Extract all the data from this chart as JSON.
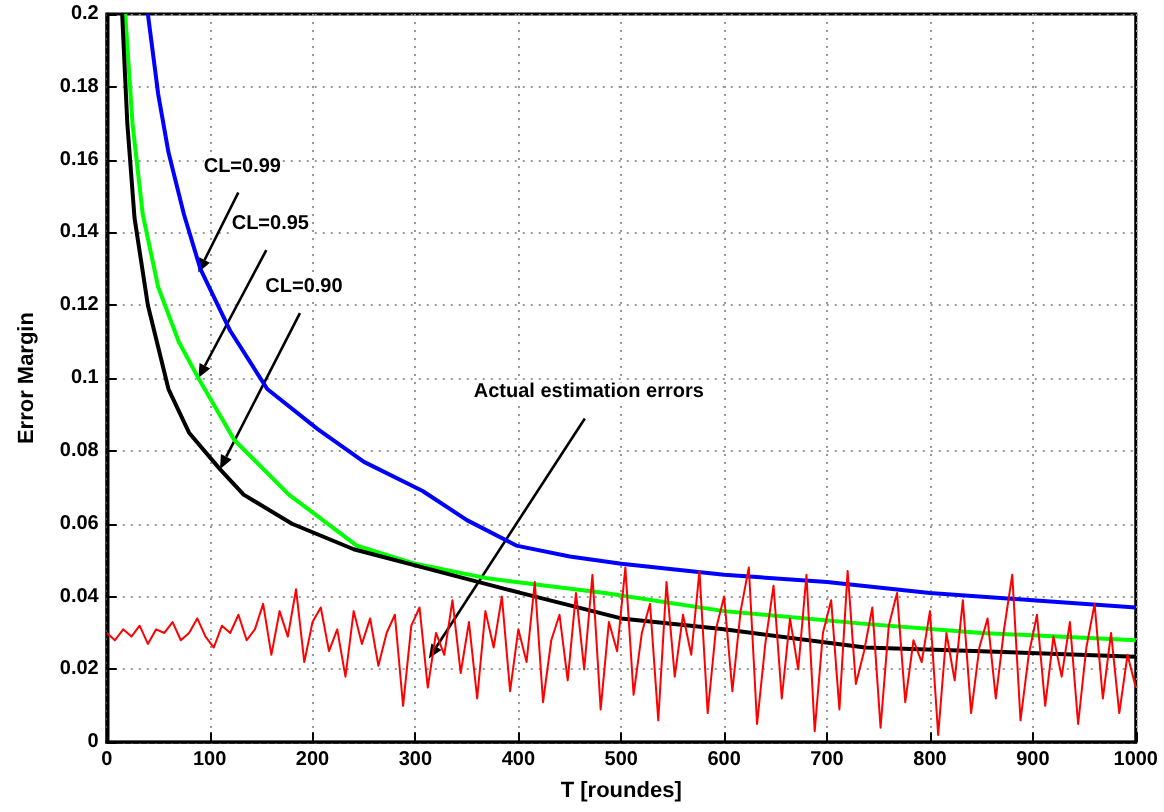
{
  "chart_data": {
    "type": "line",
    "xlabel": "T [roundes]",
    "ylabel": "Error Margin",
    "xlim": [
      0,
      1000
    ],
    "xticks": [
      0,
      100,
      200,
      300,
      400,
      500,
      600,
      700,
      800,
      900,
      1000
    ],
    "ylim": [
      0,
      0.2
    ],
    "yticks": [
      0,
      0.02,
      0.04,
      0.06,
      0.08,
      0.1,
      0.12,
      0.14,
      0.16,
      0.18,
      0.2
    ],
    "grid": true,
    "marker": "none",
    "line_style": "solid",
    "series": [
      {
        "color": "#0000ff",
        "x": [
          40,
          50,
          60,
          75,
          91,
          120,
          156,
          205,
          250,
          307,
          350,
          398,
          450,
          500,
          600,
          700,
          800,
          900,
          1000
        ],
        "values": [
          0.2,
          0.178,
          0.162,
          0.145,
          0.13,
          0.113,
          0.097,
          0.086,
          0.077,
          0.069,
          0.061,
          0.054,
          0.051,
          0.049,
          0.046,
          0.044,
          0.041,
          0.039,
          0.037
        ]
      },
      {
        "color": "#00ff00",
        "x": [
          18,
          25,
          35,
          50,
          70,
          89,
          124,
          177,
          243,
          300,
          370,
          484,
          600,
          737,
          850,
          1000
        ],
        "values": [
          0.2,
          0.17,
          0.145,
          0.125,
          0.11,
          0.1,
          0.083,
          0.068,
          0.054,
          0.049,
          0.045,
          0.041,
          0.036,
          0.0325,
          0.03,
          0.028
        ]
      },
      {
        "color": "#000000",
        "x": [
          15,
          20,
          27,
          40,
          60,
          80,
          110,
          133,
          180,
          240,
          307,
          402,
          500,
          600,
          737,
          850,
          1000
        ],
        "values": [
          0.2,
          0.17,
          0.144,
          0.12,
          0.097,
          0.085,
          0.075,
          0.068,
          0.06,
          0.053,
          0.048,
          0.041,
          0.034,
          0.031,
          0.026,
          0.025,
          0.0235
        ]
      },
      {
        "color": "#ff0000",
        "x": [
          0,
          8,
          16,
          24,
          32,
          40,
          48,
          56,
          64,
          72,
          80,
          88,
          96,
          104,
          112,
          120,
          128,
          136,
          144,
          152,
          160,
          168,
          176,
          184,
          192,
          200,
          208,
          216,
          224,
          232,
          240,
          248,
          256,
          264,
          272,
          280,
          288,
          296,
          304,
          312,
          320,
          328,
          336,
          344,
          352,
          360,
          368,
          376,
          384,
          392,
          400,
          408,
          416,
          424,
          432,
          440,
          448,
          456,
          464,
          472,
          480,
          488,
          496,
          504,
          512,
          520,
          528,
          536,
          544,
          552,
          560,
          568,
          576,
          584,
          592,
          600,
          608,
          616,
          624,
          632,
          640,
          648,
          656,
          664,
          672,
          680,
          688,
          696,
          704,
          712,
          720,
          728,
          736,
          744,
          752,
          760,
          768,
          776,
          784,
          792,
          800,
          808,
          816,
          824,
          832,
          840,
          848,
          856,
          864,
          872,
          880,
          888,
          896,
          904,
          912,
          920,
          928,
          936,
          944,
          952,
          960,
          968,
          976,
          984,
          992,
          1000
        ],
        "values": [
          0.03,
          0.028,
          0.031,
          0.029,
          0.032,
          0.027,
          0.031,
          0.03,
          0.033,
          0.028,
          0.03,
          0.034,
          0.029,
          0.026,
          0.032,
          0.03,
          0.035,
          0.028,
          0.031,
          0.038,
          0.024,
          0.036,
          0.029,
          0.042,
          0.022,
          0.033,
          0.037,
          0.025,
          0.031,
          0.018,
          0.036,
          0.027,
          0.034,
          0.021,
          0.03,
          0.035,
          0.01,
          0.032,
          0.037,
          0.015,
          0.03,
          0.024,
          0.039,
          0.019,
          0.033,
          0.012,
          0.036,
          0.026,
          0.04,
          0.014,
          0.031,
          0.022,
          0.044,
          0.011,
          0.028,
          0.035,
          0.017,
          0.041,
          0.02,
          0.046,
          0.009,
          0.033,
          0.025,
          0.048,
          0.013,
          0.03,
          0.038,
          0.006,
          0.044,
          0.018,
          0.035,
          0.024,
          0.047,
          0.008,
          0.031,
          0.04,
          0.014,
          0.036,
          0.048,
          0.005,
          0.027,
          0.043,
          0.012,
          0.034,
          0.02,
          0.046,
          0.003,
          0.03,
          0.039,
          0.009,
          0.047,
          0.016,
          0.025,
          0.037,
          0.004,
          0.032,
          0.041,
          0.011,
          0.028,
          0.022,
          0.036,
          0.002,
          0.03,
          0.017,
          0.039,
          0.008,
          0.026,
          0.034,
          0.012,
          0.031,
          0.046,
          0.006,
          0.024,
          0.035,
          0.01,
          0.029,
          0.018,
          0.033,
          0.005,
          0.026,
          0.038,
          0.012,
          0.03,
          0.008,
          0.024,
          0.015
        ]
      }
    ],
    "annotations": [
      {
        "text": "CL=0.99",
        "x": 89,
        "y": 0.129
      },
      {
        "text": "CL=0.95",
        "x": 89,
        "y": 0.1
      },
      {
        "text": "CL=0.90",
        "x": 110,
        "y": 0.075
      },
      {
        "text": "Actual estimation errors",
        "x": 313,
        "y": 0.023
      }
    ]
  }
}
